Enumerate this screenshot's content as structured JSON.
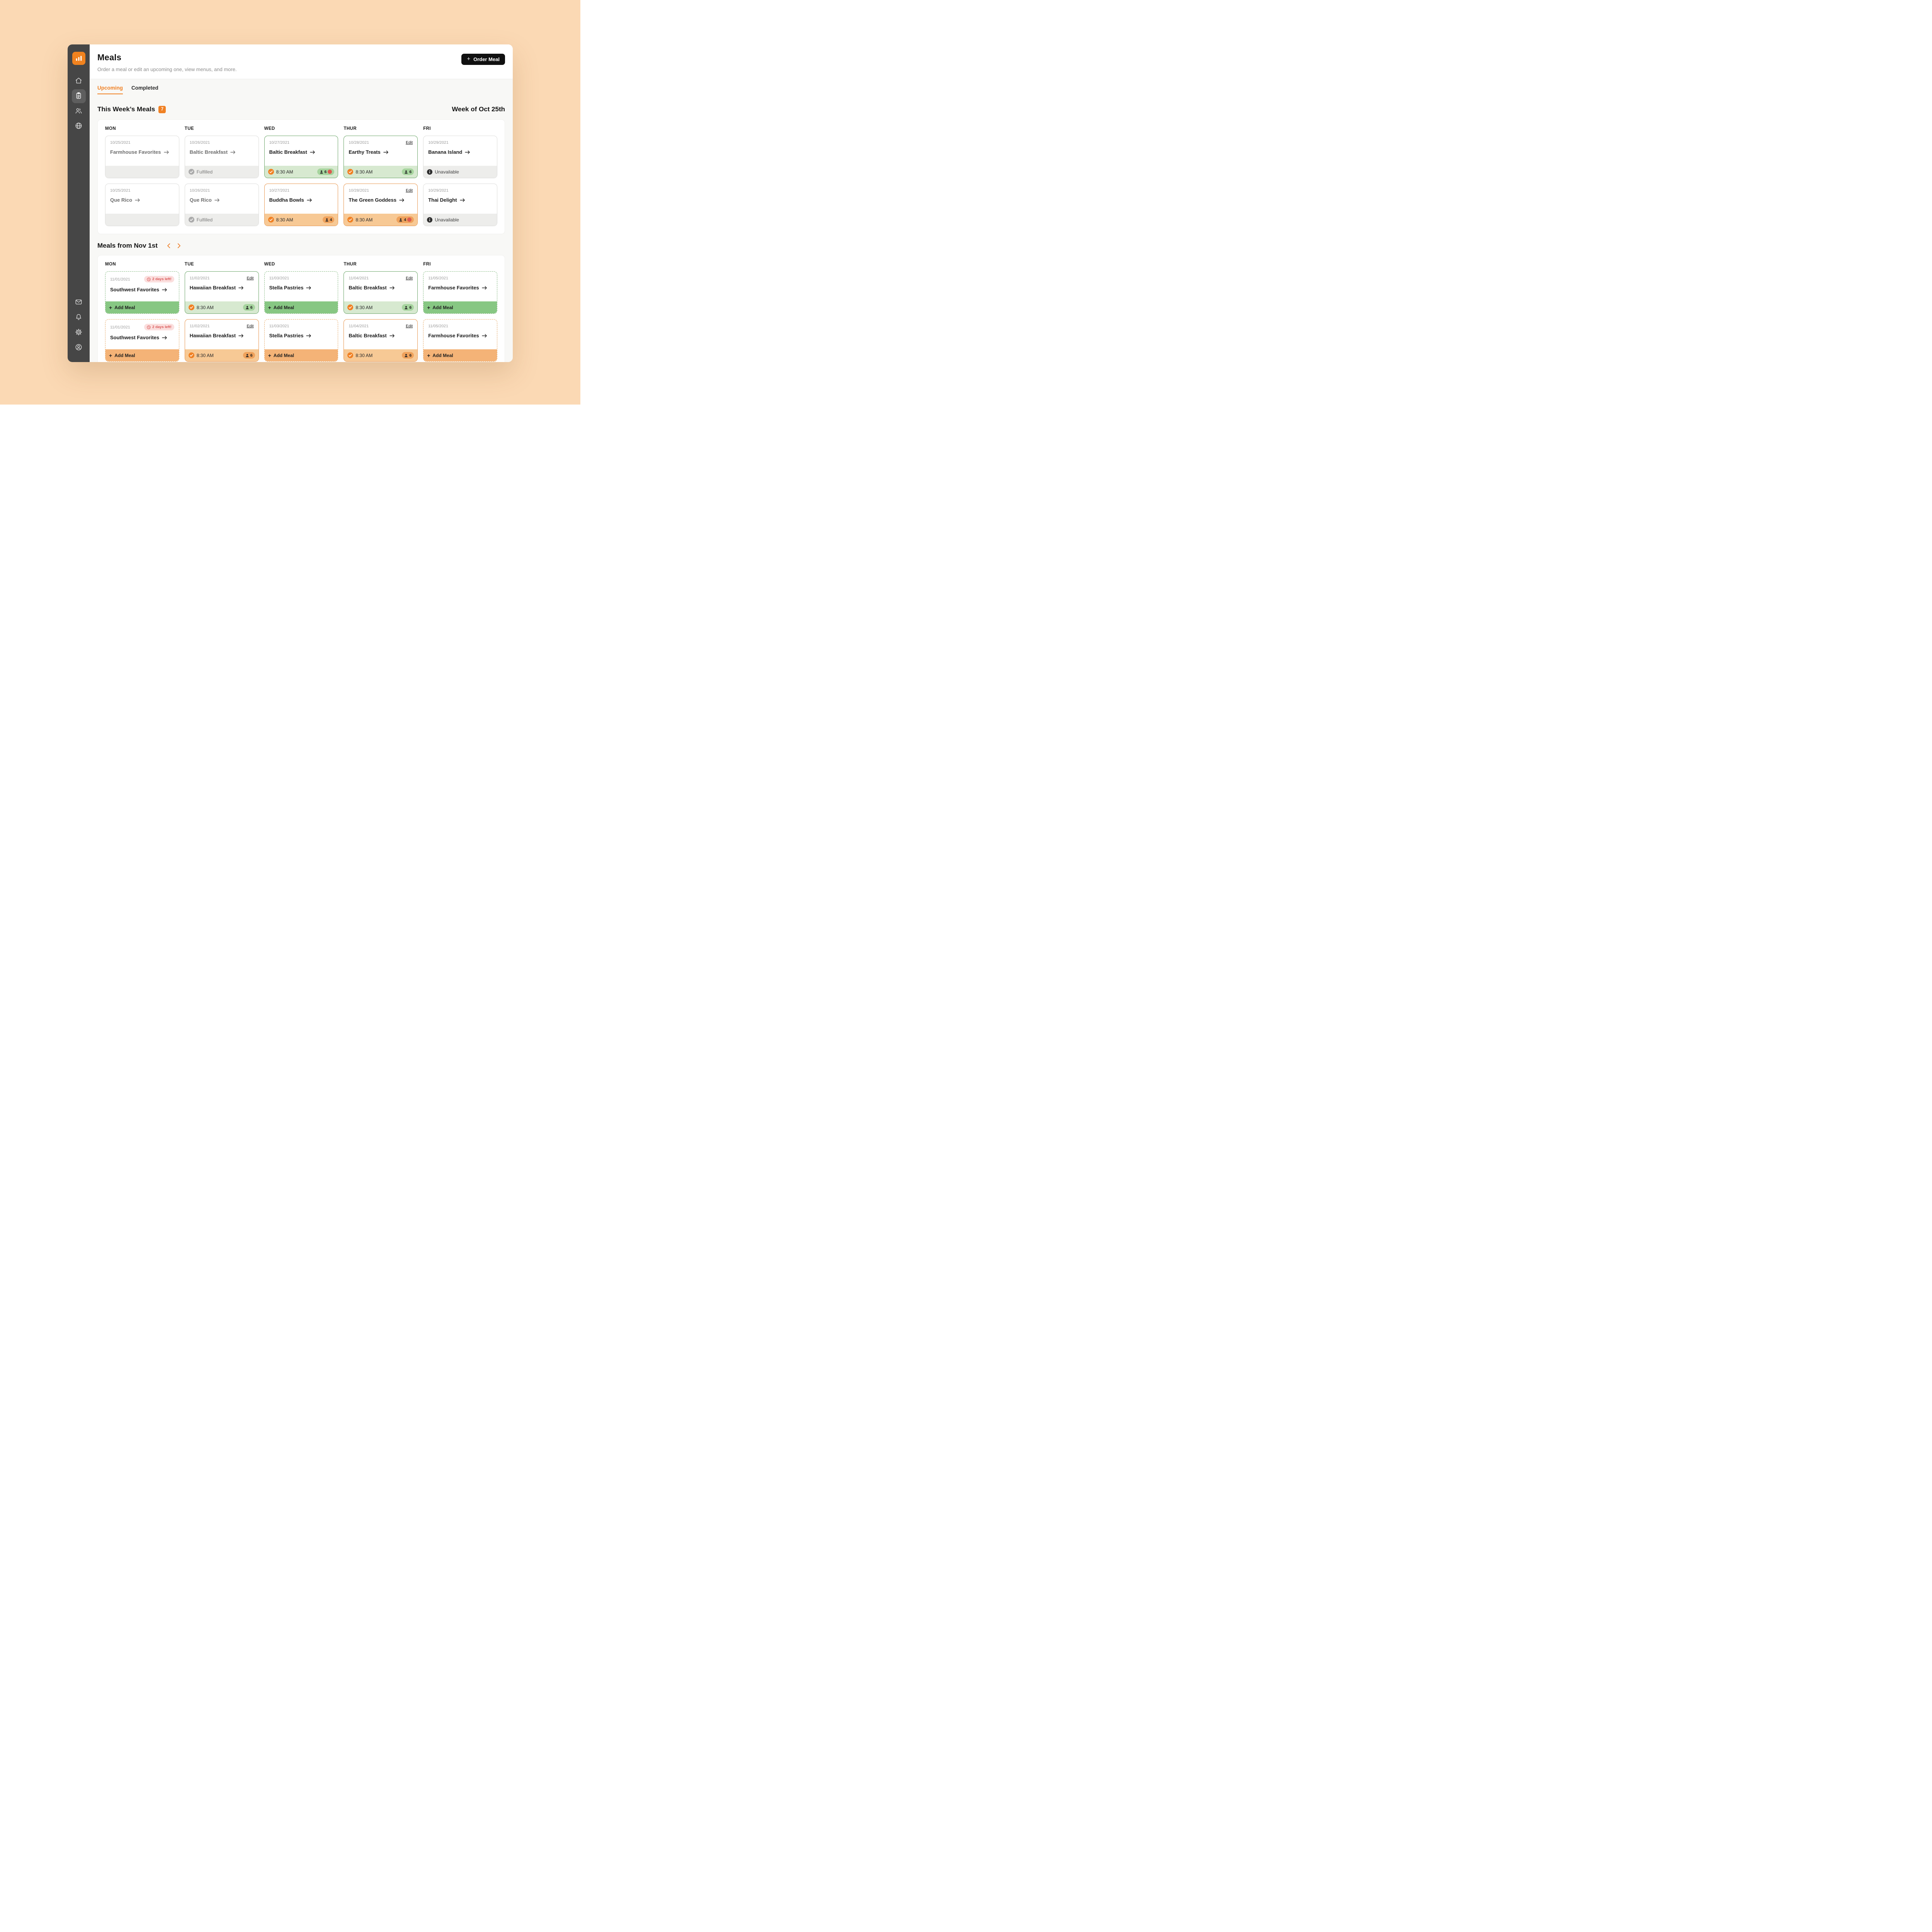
{
  "colors": {
    "accent": "#F08124",
    "green_border": "#69A466",
    "orange_border": "#E9964E",
    "red": "#DD5A4F",
    "sidebar": "#464646",
    "page_bg": "#FBD9B4"
  },
  "sidebar": {
    "logo_icon": "bar-chart-logo",
    "top_items": [
      {
        "icon": "home-icon",
        "active": false
      },
      {
        "icon": "clipboard-icon",
        "active": true
      },
      {
        "icon": "people-icon",
        "active": false
      },
      {
        "icon": "globe-icon",
        "active": false
      }
    ],
    "bottom_items": [
      {
        "icon": "mail-icon",
        "active": false
      },
      {
        "icon": "bell-icon",
        "active": false
      },
      {
        "icon": "settings-icon",
        "active": false
      },
      {
        "icon": "account-icon",
        "active": false
      }
    ]
  },
  "header": {
    "title": "Meals",
    "subtitle": "Order a meal or edit an upcoming one, view menus, and more.",
    "order_button": "Order Meal"
  },
  "tabs": [
    {
      "label": "Upcoming",
      "active": true
    },
    {
      "label": "Completed",
      "active": false
    }
  ],
  "sections": [
    {
      "heading": "This Week’s Meals",
      "badge": "7",
      "right_label": "Week of Oct 25th",
      "days": [
        "MON",
        "TUE",
        "WED",
        "THUR",
        "FRI"
      ],
      "rows": [
        [
          {
            "date": "10/25/2021",
            "meal": "Farmhouse Favorites",
            "muted": true,
            "style": "default",
            "footer": {
              "type": "empty"
            }
          },
          {
            "date": "10/26/2021",
            "meal": "Baltic Breakfast",
            "muted": true,
            "style": "default",
            "footer": {
              "type": "fulfilled",
              "label": "Fulfilled"
            }
          },
          {
            "date": "10/27/2021",
            "meal": "Baltic Breakfast",
            "style": "green",
            "footer": {
              "type": "time",
              "tone": "green",
              "time": "8:30 AM",
              "count": "6",
              "alert": true
            }
          },
          {
            "date": "10/28/2021",
            "meal": "Earthy Treats",
            "style": "green",
            "edit": "Edit",
            "footer": {
              "type": "time",
              "tone": "green",
              "time": "8:30 AM",
              "count": "6"
            }
          },
          {
            "date": "10/29/2021",
            "meal": "Banana Island",
            "style": "default",
            "footer": {
              "type": "unavailable",
              "label": "Unavailable"
            }
          }
        ],
        [
          {
            "date": "10/25/2021",
            "meal": "Que Rico",
            "muted": true,
            "style": "default",
            "footer": {
              "type": "empty"
            }
          },
          {
            "date": "10/26/2021",
            "meal": "Que Rico",
            "muted": true,
            "style": "default",
            "footer": {
              "type": "fulfilled",
              "label": "Fulfilled"
            }
          },
          {
            "date": "10/27/2021",
            "meal": "Buddha Bowls",
            "style": "orange",
            "footer": {
              "type": "time",
              "tone": "orange",
              "time": "8:30 AM",
              "count": "4"
            }
          },
          {
            "date": "10/28/2021",
            "meal": "The Green Goddess",
            "style": "orange",
            "edit": "Edit",
            "footer": {
              "type": "time",
              "tone": "orange",
              "time": "8:30 AM",
              "count": "4",
              "alert": true
            }
          },
          {
            "date": "10/29/2021",
            "meal": "Thai Delight",
            "style": "default",
            "footer": {
              "type": "unavailable",
              "label": "Unavailable"
            }
          }
        ]
      ]
    },
    {
      "heading": "Meals from Nov 1st",
      "days": [
        "MON",
        "TUE",
        "WED",
        "THUR",
        "FRI"
      ],
      "rows": [
        [
          {
            "date": "11/01/2021",
            "meal": "Southwest Favorites",
            "style": "dashed-green",
            "days_left": "2 days left!",
            "footer": {
              "type": "add",
              "tone": "green",
              "label": "Add Meal"
            }
          },
          {
            "date": "11/02/2021",
            "meal": "Hawaiian Breakfast",
            "style": "green",
            "edit": "Edit",
            "footer": {
              "type": "time",
              "tone": "green",
              "time": "8:30 AM",
              "count": "6"
            }
          },
          {
            "date": "11/03/2021",
            "meal": "Stella Pastries",
            "style": "dashed-green",
            "footer": {
              "type": "add",
              "tone": "green",
              "label": "Add Meal"
            }
          },
          {
            "date": "11/04/2021",
            "meal": "Baltic Breakfast",
            "style": "green",
            "edit": "Edit",
            "footer": {
              "type": "time",
              "tone": "green",
              "time": "8:30 AM",
              "count": "6"
            }
          },
          {
            "date": "11/05/2021",
            "meal": "Farmhouse Favorites",
            "style": "dashed-green",
            "footer": {
              "type": "add",
              "tone": "green",
              "label": "Add Meal"
            }
          }
        ],
        [
          {
            "date": "11/01/2021",
            "meal": "Southwest Favorites",
            "style": "dashed-orange",
            "days_left": "2 days left!",
            "footer": {
              "type": "add",
              "tone": "orange",
              "label": "Add Meal"
            }
          },
          {
            "date": "11/02/2021",
            "meal": "Hawaiian Breakfast",
            "style": "orange",
            "edit": "Edit",
            "footer": {
              "type": "time",
              "tone": "orange",
              "time": "8:30 AM",
              "count": "6"
            }
          },
          {
            "date": "11/03/2021",
            "meal": "Stella Pastries",
            "style": "dashed-orange",
            "footer": {
              "type": "add",
              "tone": "orange",
              "label": "Add Meal"
            }
          },
          {
            "date": "11/04/2021",
            "meal": "Baltic Breakfast",
            "style": "orange",
            "edit": "Edit",
            "footer": {
              "type": "time",
              "tone": "orange",
              "time": "8:30 AM",
              "count": "6"
            }
          },
          {
            "date": "11/05/2021",
            "meal": "Farmhouse Favorites",
            "style": "dashed-orange",
            "footer": {
              "type": "add",
              "tone": "orange",
              "label": "Add Meal"
            }
          }
        ]
      ]
    }
  ]
}
